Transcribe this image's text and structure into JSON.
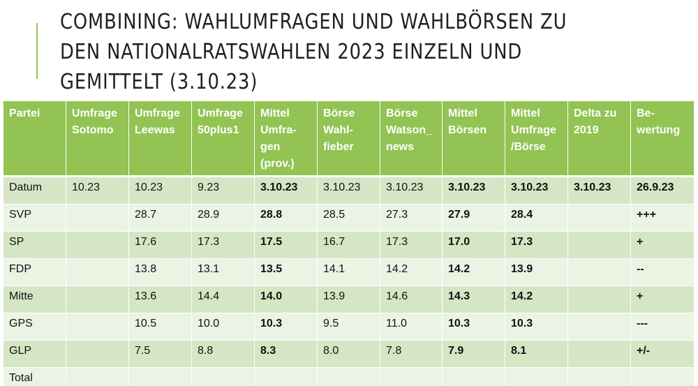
{
  "slide": {
    "title_lines": [
      "COMBINING: WAHLUMFRAGEN UND WAHLBÖRSEN ZU",
      "DEN NATIONALRATSWAHLEN 2023 EINZELN UND",
      "GEMITTELT (3.10.23)"
    ]
  },
  "table": {
    "headers": [
      "Partei",
      "Umfrage Sotomo",
      "Umfrage Leewas",
      "Umfrage 50plus1",
      "Mittel Umfra-gen (prov.)",
      "Börse Wahl-fieber",
      "Börse Watson_ news",
      "Mittel Börsen",
      "Mittel Umfrage /Börse",
      "Delta zu 2019",
      "Be-wertung"
    ],
    "rows": [
      [
        "Datum",
        "10.23",
        "10.23",
        "9.23",
        "3.10.23",
        "3.10.23",
        "3.10.23",
        "3.10.23",
        "3.10.23",
        "3.10.23",
        "26.9.23"
      ],
      [
        "SVP",
        "",
        "28.7",
        "28.9",
        "28.8",
        "28.5",
        "27.3",
        "27.9",
        "28.4",
        "",
        "+++"
      ],
      [
        "SP",
        "",
        "17.6",
        "17.3",
        "17.5",
        "16.7",
        "17.3",
        "17.0",
        "17.3",
        "",
        "+"
      ],
      [
        "FDP",
        "",
        "13.8",
        "13.1",
        "13.5",
        "14.1",
        "14.2",
        "14.2",
        "13.9",
        "",
        "--"
      ],
      [
        "Mitte",
        "",
        "13.6",
        "14.4",
        "14.0",
        "13.9",
        "14.6",
        "14.3",
        "14.2",
        "",
        "+"
      ],
      [
        "GPS",
        "",
        "10.5",
        "10.0",
        "10.3",
        "9.5",
        "11.0",
        "10.3",
        "10.3",
        "",
        "---"
      ],
      [
        "GLP",
        "",
        "7.5",
        "8.8",
        "8.3",
        "8.0",
        "7.8",
        "7.9",
        "8.1",
        "",
        "+/-"
      ],
      [
        "Total",
        "",
        "",
        "",
        "",
        "",
        "",
        "",
        "",
        "",
        ""
      ]
    ]
  }
}
